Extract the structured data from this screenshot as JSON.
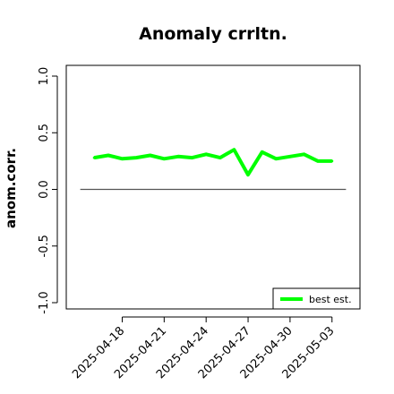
{
  "chart_data": {
    "type": "line",
    "title": "Anomaly crrltn.",
    "ylabel": "anom.corr.",
    "xlabel": "",
    "ylim": [
      -1.0,
      1.0
    ],
    "yticks": [
      {
        "value": -1.0,
        "label": "-1.0"
      },
      {
        "value": -0.5,
        "label": "-0.5"
      },
      {
        "value": 0.0,
        "label": "0.0"
      },
      {
        "value": 0.5,
        "label": "0.5"
      },
      {
        "value": 1.0,
        "label": "1.0"
      }
    ],
    "xticks": [
      {
        "date": "2025-04-18",
        "label": "2025-04-18",
        "color": "#000000"
      },
      {
        "date": "2025-04-21",
        "label": "2025-04-21",
        "color": "#000000"
      },
      {
        "date": "2025-04-24",
        "label": "2025-04-24",
        "color": "#228B22"
      },
      {
        "date": "2025-04-27",
        "label": "2025-04-27",
        "color": "#000000"
      },
      {
        "date": "2025-04-30",
        "label": "2025-04-30",
        "color": "#000000"
      },
      {
        "date": "2025-05-03",
        "label": "2025-05-03",
        "color": "#000000"
      }
    ],
    "xlim": [
      "2025-04-14",
      "2025-05-05"
    ],
    "zero_line": {
      "from": "2025-04-15",
      "to": "2025-05-04",
      "value": 0.0,
      "color": "#555555"
    },
    "series": [
      {
        "name": "best est.",
        "color": "#00ff00",
        "x": [
          "2025-04-16",
          "2025-04-17",
          "2025-04-18",
          "2025-04-19",
          "2025-04-20",
          "2025-04-21",
          "2025-04-22",
          "2025-04-23",
          "2025-04-24",
          "2025-04-25",
          "2025-04-26",
          "2025-04-27",
          "2025-04-28",
          "2025-04-29",
          "2025-04-30",
          "2025-05-01",
          "2025-05-02",
          "2025-05-03"
        ],
        "y": [
          0.28,
          0.3,
          0.27,
          0.28,
          0.3,
          0.27,
          0.29,
          0.28,
          0.31,
          0.28,
          0.35,
          0.13,
          0.33,
          0.27,
          0.29,
          0.31,
          0.25,
          0.25
        ]
      }
    ],
    "legend": {
      "position": "bottom-right",
      "entries": [
        "best est."
      ]
    },
    "grid": false
  }
}
